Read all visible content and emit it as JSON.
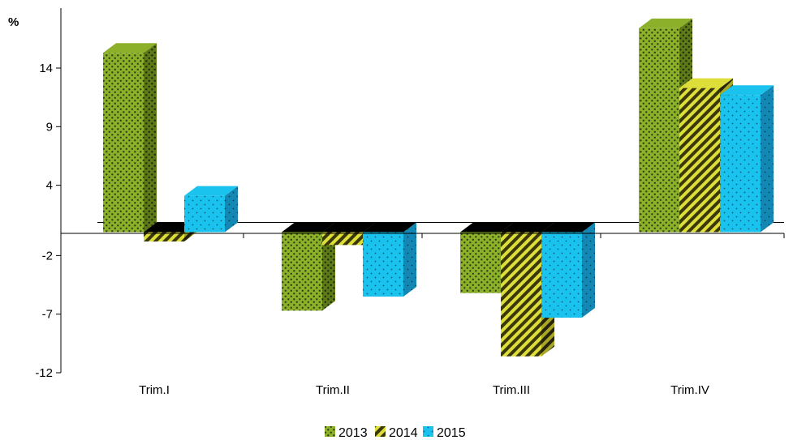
{
  "chart_data": {
    "type": "bar",
    "style": "3d-clustered",
    "unit_label": "%",
    "categories": [
      "Trim.I",
      "Trim.II",
      "Trim.III",
      "Trim.IV"
    ],
    "series": [
      {
        "name": "2013",
        "values": [
          15.3,
          -6.7,
          -5.2,
          17.4
        ],
        "color": "#8db02a",
        "pattern": "dots"
      },
      {
        "name": "2014",
        "values": [
          -0.8,
          -1.1,
          -10.6,
          12.3
        ],
        "color": "#dede3a",
        "pattern": "diagonal-stripes"
      },
      {
        "name": "2015",
        "values": [
          3.1,
          -5.5,
          -7.3,
          11.7
        ],
        "color": "#19c3ee",
        "pattern": "fine-dots"
      }
    ],
    "yticks": [
      14,
      9,
      4,
      -2,
      -7,
      -12
    ],
    "ylim": [
      -12,
      17.4
    ],
    "legend_position": "bottom",
    "grid": false
  }
}
